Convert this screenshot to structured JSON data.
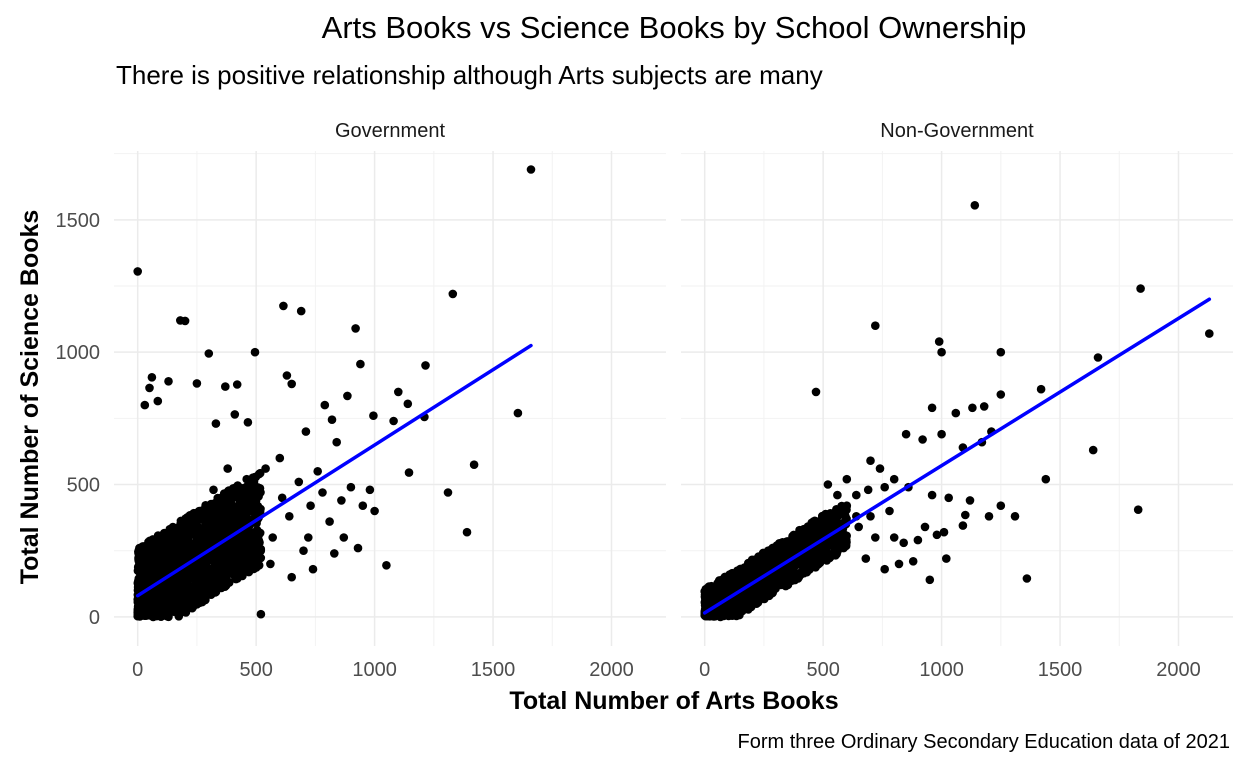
{
  "chart_data": {
    "type": "scatter",
    "title": "Arts Books vs Science Books by School Ownership",
    "subtitle": "There is positive relationship although Arts subjects are many",
    "caption": "Form three Ordinary Secondary Education data of 2021",
    "xlabel": "Total Number of Arts Books",
    "ylabel": "Total Number of Science Books",
    "xlim": [
      -100,
      2230
    ],
    "ylim": [
      -110,
      1760
    ],
    "x_ticks": [
      0,
      500,
      1000,
      1500,
      2000
    ],
    "y_ticks": [
      0,
      500,
      1000,
      1500
    ],
    "grid": true,
    "point_color": "#000000",
    "line_color": "#0000ff",
    "panels": [
      {
        "label": "Government",
        "trend": {
          "x": [
            0,
            1660
          ],
          "y": [
            80,
            1025
          ]
        },
        "cluster": {
          "x_max": 520,
          "count": 1400
        },
        "points": [
          [
            0,
            1305
          ],
          [
            1660,
            1690
          ],
          [
            1330,
            1220
          ],
          [
            615,
            1175
          ],
          [
            690,
            1155
          ],
          [
            180,
            1120
          ],
          [
            200,
            1118
          ],
          [
            920,
            1090
          ],
          [
            300,
            995
          ],
          [
            495,
            1000
          ],
          [
            940,
            955
          ],
          [
            1215,
            950
          ],
          [
            60,
            905
          ],
          [
            630,
            912
          ],
          [
            50,
            865
          ],
          [
            130,
            890
          ],
          [
            420,
            878
          ],
          [
            250,
            882
          ],
          [
            650,
            880
          ],
          [
            30,
            800
          ],
          [
            85,
            815
          ],
          [
            370,
            870
          ],
          [
            1100,
            850
          ],
          [
            885,
            835
          ],
          [
            790,
            800
          ],
          [
            410,
            765
          ],
          [
            1140,
            805
          ],
          [
            1605,
            770
          ],
          [
            1210,
            755
          ],
          [
            330,
            730
          ],
          [
            465,
            735
          ],
          [
            1080,
            740
          ],
          [
            995,
            760
          ],
          [
            820,
            745
          ],
          [
            710,
            700
          ],
          [
            840,
            660
          ],
          [
            1145,
            545
          ],
          [
            1420,
            575
          ],
          [
            1310,
            470
          ],
          [
            1390,
            320
          ],
          [
            1050,
            195
          ],
          [
            930,
            260
          ],
          [
            870,
            300
          ],
          [
            730,
            420
          ],
          [
            760,
            550
          ],
          [
            600,
            600
          ],
          [
            680,
            510
          ],
          [
            780,
            470
          ],
          [
            950,
            420
          ],
          [
            640,
            380
          ],
          [
            570,
            300
          ],
          [
            500,
            250
          ],
          [
            720,
            300
          ],
          [
            810,
            360
          ],
          [
            560,
            200
          ],
          [
            650,
            150
          ],
          [
            1000,
            400
          ],
          [
            860,
            440
          ],
          [
            740,
            180
          ],
          [
            900,
            490
          ],
          [
            540,
            560
          ],
          [
            420,
            470
          ],
          [
            460,
            520
          ],
          [
            380,
            560
          ],
          [
            320,
            480
          ],
          [
            470,
            440
          ],
          [
            360,
            400
          ],
          [
            700,
            250
          ],
          [
            610,
            450
          ],
          [
            830,
            240
          ],
          [
            520,
            10
          ],
          [
            980,
            480
          ]
        ]
      },
      {
        "label": "Non-Government",
        "trend": {
          "x": [
            0,
            2130
          ],
          "y": [
            15,
            1200
          ]
        },
        "cluster": {
          "x_max": 600,
          "count": 1050
        },
        "points": [
          [
            1140,
            1555
          ],
          [
            1840,
            1240
          ],
          [
            2130,
            1070
          ],
          [
            720,
            1100
          ],
          [
            990,
            1040
          ],
          [
            1000,
            1000
          ],
          [
            1250,
            1000
          ],
          [
            1660,
            980
          ],
          [
            470,
            850
          ],
          [
            1420,
            860
          ],
          [
            1250,
            840
          ],
          [
            1130,
            790
          ],
          [
            1180,
            795
          ],
          [
            960,
            790
          ],
          [
            1060,
            770
          ],
          [
            1210,
            700
          ],
          [
            1000,
            690
          ],
          [
            1170,
            660
          ],
          [
            1090,
            640
          ],
          [
            1640,
            630
          ],
          [
            850,
            690
          ],
          [
            920,
            670
          ],
          [
            700,
            590
          ],
          [
            740,
            560
          ],
          [
            800,
            520
          ],
          [
            860,
            490
          ],
          [
            760,
            490
          ],
          [
            690,
            480
          ],
          [
            960,
            460
          ],
          [
            1030,
            450
          ],
          [
            1250,
            420
          ],
          [
            1440,
            520
          ],
          [
            1310,
            380
          ],
          [
            1100,
            385
          ],
          [
            1200,
            380
          ],
          [
            1090,
            345
          ],
          [
            1830,
            405
          ],
          [
            980,
            310
          ],
          [
            1010,
            320
          ],
          [
            900,
            290
          ],
          [
            840,
            280
          ],
          [
            720,
            300
          ],
          [
            600,
            420
          ],
          [
            640,
            380
          ],
          [
            560,
            340
          ],
          [
            950,
            140
          ],
          [
            1360,
            145
          ],
          [
            1020,
            220
          ],
          [
            880,
            210
          ],
          [
            820,
            200
          ],
          [
            760,
            180
          ],
          [
            680,
            220
          ],
          [
            650,
            340
          ],
          [
            700,
            380
          ],
          [
            780,
            400
          ],
          [
            560,
            460
          ],
          [
            520,
            500
          ],
          [
            600,
            520
          ],
          [
            640,
            460
          ],
          [
            480,
            360
          ],
          [
            560,
            280
          ],
          [
            800,
            300
          ],
          [
            1120,
            440
          ],
          [
            930,
            340
          ]
        ]
      }
    ]
  }
}
